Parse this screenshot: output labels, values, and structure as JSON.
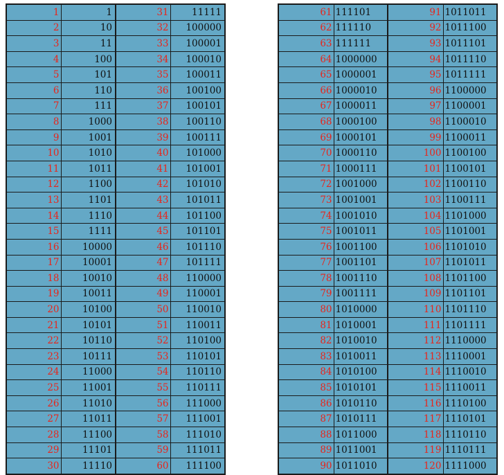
{
  "left_table": [
    [
      "1",
      "1",
      "31",
      "11111"
    ],
    [
      "2",
      "10",
      "32",
      "100000"
    ],
    [
      "3",
      "11",
      "33",
      "100001"
    ],
    [
      "4",
      "100",
      "34",
      "100010"
    ],
    [
      "5",
      "101",
      "35",
      "100011"
    ],
    [
      "6",
      "110",
      "36",
      "100100"
    ],
    [
      "7",
      "111",
      "37",
      "100101"
    ],
    [
      "8",
      "1000",
      "38",
      "100110"
    ],
    [
      "9",
      "1001",
      "39",
      "100111"
    ],
    [
      "10",
      "1010",
      "40",
      "101000"
    ],
    [
      "11",
      "1011",
      "41",
      "101001"
    ],
    [
      "12",
      "1100",
      "42",
      "101010"
    ],
    [
      "13",
      "1101",
      "43",
      "101011"
    ],
    [
      "14",
      "1110",
      "44",
      "101100"
    ],
    [
      "15",
      "1111",
      "45",
      "101101"
    ],
    [
      "16",
      "10000",
      "46",
      "101110"
    ],
    [
      "17",
      "10001",
      "47",
      "101111"
    ],
    [
      "18",
      "10010",
      "48",
      "110000"
    ],
    [
      "19",
      "10011",
      "49",
      "110001"
    ],
    [
      "20",
      "10100",
      "50",
      "110010"
    ],
    [
      "21",
      "10101",
      "51",
      "110011"
    ],
    [
      "22",
      "10110",
      "52",
      "110100"
    ],
    [
      "23",
      "10111",
      "53",
      "110101"
    ],
    [
      "24",
      "11000",
      "54",
      "110110"
    ],
    [
      "25",
      "11001",
      "55",
      "110111"
    ],
    [
      "26",
      "11010",
      "56",
      "111000"
    ],
    [
      "27",
      "11011",
      "57",
      "111001"
    ],
    [
      "28",
      "11100",
      "58",
      "111010"
    ],
    [
      "29",
      "11101",
      "59",
      "111011"
    ],
    [
      "30",
      "11110",
      "60",
      "111100"
    ]
  ],
  "right_table": [
    [
      "61",
      "111101",
      "91",
      "1011011"
    ],
    [
      "62",
      "111110",
      "92",
      "1011100"
    ],
    [
      "63",
      "111111",
      "93",
      "1011101"
    ],
    [
      "64",
      "1000000",
      "94",
      "1011110"
    ],
    [
      "65",
      "1000001",
      "95",
      "1011111"
    ],
    [
      "66",
      "1000010",
      "96",
      "1100000"
    ],
    [
      "67",
      "1000011",
      "97",
      "1100001"
    ],
    [
      "68",
      "1000100",
      "98",
      "1100010"
    ],
    [
      "69",
      "1000101",
      "99",
      "1100011"
    ],
    [
      "70",
      "1000110",
      "100",
      "1100100"
    ],
    [
      "71",
      "1000111",
      "101",
      "1100101"
    ],
    [
      "72",
      "1001000",
      "102",
      "1100110"
    ],
    [
      "73",
      "1001001",
      "103",
      "1100111"
    ],
    [
      "74",
      "1001010",
      "104",
      "1101000"
    ],
    [
      "75",
      "1001011",
      "105",
      "1101001"
    ],
    [
      "76",
      "1001100",
      "106",
      "1101010"
    ],
    [
      "77",
      "1001101",
      "107",
      "1101011"
    ],
    [
      "78",
      "1001110",
      "108",
      "1101100"
    ],
    [
      "79",
      "1001111",
      "109",
      "1101101"
    ],
    [
      "80",
      "1010000",
      "110",
      "1101110"
    ],
    [
      "81",
      "1010001",
      "111",
      "1101111"
    ],
    [
      "82",
      "1010010",
      "112",
      "1110000"
    ],
    [
      "83",
      "1010011",
      "113",
      "1110001"
    ],
    [
      "84",
      "1010100",
      "114",
      "1110010"
    ],
    [
      "85",
      "1010101",
      "115",
      "1110011"
    ],
    [
      "86",
      "1010110",
      "116",
      "1110100"
    ],
    [
      "87",
      "1010111",
      "117",
      "1110101"
    ],
    [
      "88",
      "1011000",
      "118",
      "1110110"
    ],
    [
      "89",
      "1011001",
      "119",
      "1110111"
    ],
    [
      "90",
      "1011010",
      "120",
      "1111000"
    ]
  ],
  "colors": {
    "cell_background": "#64a8c6",
    "decimal_text": "#e8241a",
    "binary_text": "#101010",
    "grid_line": "#1a1a1a"
  }
}
